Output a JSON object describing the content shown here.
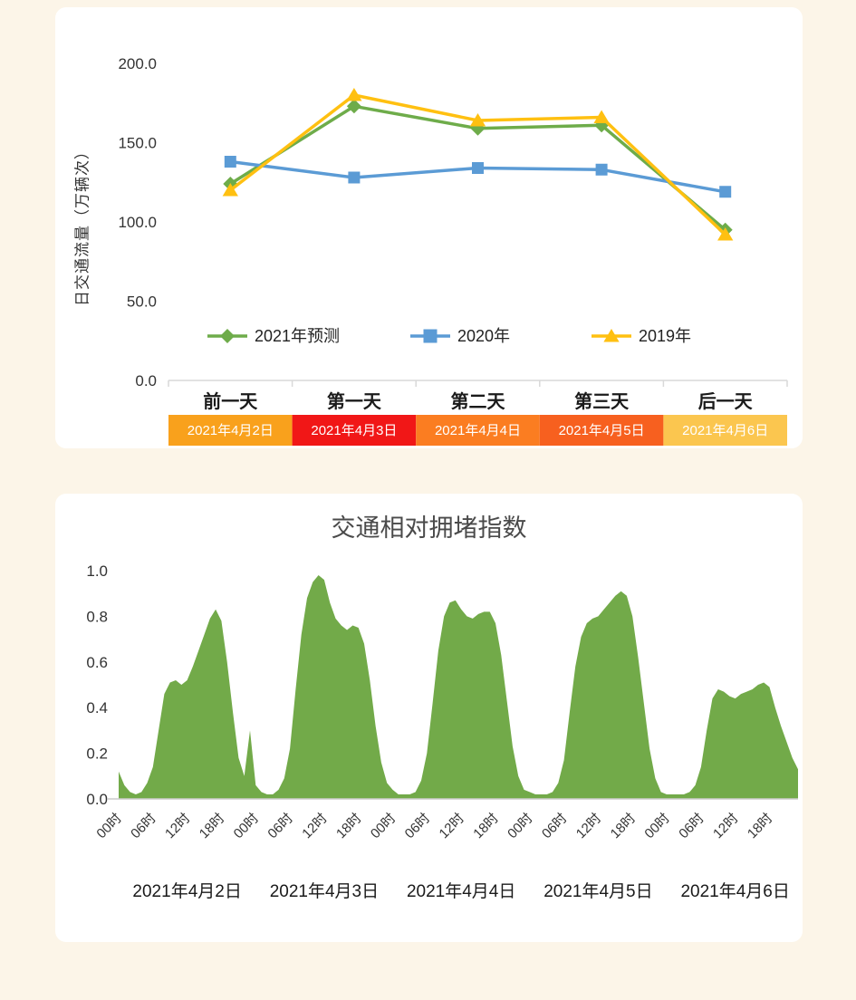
{
  "chart_data": [
    {
      "type": "line",
      "ylabel": "日交通流量（万辆次）",
      "ylim": [
        0,
        200
      ],
      "yticks": [
        0.0,
        50.0,
        100.0,
        150.0,
        200.0
      ],
      "categories": [
        "前一天",
        "第一天",
        "第二天",
        "第三天",
        "后一天"
      ],
      "date_band": [
        {
          "label": "2021年4月2日",
          "color": "#F9A11C"
        },
        {
          "label": "2021年4月3日",
          "color": "#F11717"
        },
        {
          "label": "2021年4月4日",
          "color": "#FB7D21"
        },
        {
          "label": "2021年4月5日",
          "color": "#F7601F"
        },
        {
          "label": "2021年4月6日",
          "color": "#FBC64F"
        }
      ],
      "series": [
        {
          "name": "2021年预测",
          "color": "#6EAC4A",
          "marker": "diamond",
          "values": [
            124,
            173,
            159,
            161,
            95
          ]
        },
        {
          "name": "2020年",
          "color": "#5B9BD5",
          "marker": "square",
          "values": [
            138,
            128,
            134,
            133,
            119
          ]
        },
        {
          "name": "2019年",
          "color": "#FFC011",
          "marker": "triangle",
          "values": [
            120,
            180,
            164,
            166,
            92
          ]
        }
      ],
      "grid": false,
      "legend_position": "bottom-inside"
    },
    {
      "type": "area",
      "title": "交通相对拥堵指数",
      "color": "#72AA49",
      "ylim": [
        0,
        1.0
      ],
      "yticks": [
        0.0,
        0.2,
        0.4,
        0.6,
        0.8,
        1.0
      ],
      "x_tick_hours": [
        0,
        6,
        12,
        18,
        24,
        30,
        36,
        42,
        48,
        54,
        60,
        66,
        72,
        78,
        84,
        90,
        96,
        102,
        108,
        114
      ],
      "x_tick_labels": [
        "00时",
        "06时",
        "12时",
        "18时",
        "00时",
        "06时",
        "12时",
        "18时",
        "00时",
        "06时",
        "12时",
        "18时",
        "00时",
        "06时",
        "12时",
        "18时",
        "00时",
        "06时",
        "12时",
        "18时"
      ],
      "dates": [
        "2021年4月2日",
        "2021年4月3日",
        "2021年4月4日",
        "2021年4月5日",
        "2021年4月6日"
      ],
      "values_hourly": [
        0.12,
        0.06,
        0.03,
        0.02,
        0.03,
        0.07,
        0.14,
        0.3,
        0.46,
        0.51,
        0.52,
        0.5,
        0.52,
        0.58,
        0.65,
        0.72,
        0.79,
        0.83,
        0.78,
        0.6,
        0.38,
        0.18,
        0.1,
        0.3,
        0.06,
        0.03,
        0.02,
        0.02,
        0.04,
        0.09,
        0.22,
        0.48,
        0.72,
        0.88,
        0.95,
        0.98,
        0.96,
        0.86,
        0.79,
        0.76,
        0.74,
        0.76,
        0.75,
        0.68,
        0.52,
        0.32,
        0.16,
        0.07,
        0.04,
        0.02,
        0.02,
        0.02,
        0.03,
        0.08,
        0.2,
        0.42,
        0.65,
        0.8,
        0.86,
        0.87,
        0.83,
        0.8,
        0.79,
        0.81,
        0.82,
        0.82,
        0.77,
        0.63,
        0.43,
        0.23,
        0.1,
        0.04,
        0.03,
        0.02,
        0.02,
        0.02,
        0.03,
        0.07,
        0.17,
        0.38,
        0.58,
        0.71,
        0.77,
        0.79,
        0.8,
        0.83,
        0.86,
        0.89,
        0.91,
        0.89,
        0.8,
        0.62,
        0.42,
        0.22,
        0.09,
        0.03,
        0.02,
        0.02,
        0.02,
        0.02,
        0.03,
        0.06,
        0.14,
        0.3,
        0.44,
        0.48,
        0.47,
        0.45,
        0.44,
        0.46,
        0.47,
        0.48,
        0.5,
        0.51,
        0.49,
        0.4,
        0.32,
        0.25,
        0.18,
        0.13
      ],
      "grid": false
    }
  ]
}
